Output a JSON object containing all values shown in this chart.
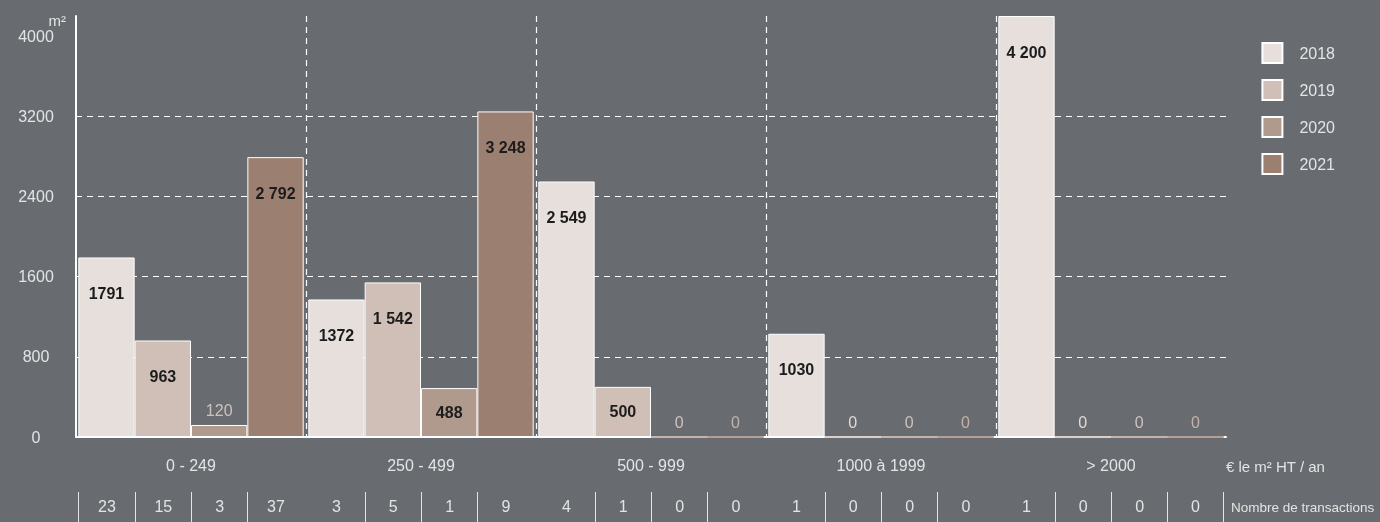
{
  "chart_data": {
    "type": "bar",
    "ylabel": "m²",
    "xlabel": "€ le m² HT / an",
    "categories": [
      "0 - 249",
      "250 - 499",
      "500 - 999",
      "1000 à 1999",
      "> 2000"
    ],
    "series": [
      {
        "name": "2018",
        "color": "#e6dfdc",
        "values": [
          1791,
          1372,
          2549,
          1030,
          4200
        ],
        "value_labels": [
          "1791",
          "1372",
          "2 549",
          "1030",
          "4 200"
        ]
      },
      {
        "name": "2019",
        "color": "#cfbfb7",
        "values": [
          963,
          1542,
          500,
          0,
          0
        ],
        "value_labels": [
          "963",
          "1 542",
          "500",
          "0",
          "0"
        ]
      },
      {
        "name": "2020",
        "color": "#b09a8e",
        "values": [
          120,
          488,
          0,
          0,
          0
        ],
        "value_labels": [
          "120",
          "488",
          "0",
          "0",
          "0"
        ]
      },
      {
        "name": "2021",
        "color": "#9b7f71",
        "values": [
          2792,
          3248,
          0,
          0,
          0
        ],
        "value_labels": [
          "2 792",
          "3 248",
          "0",
          "0",
          "0"
        ]
      }
    ],
    "ylim": [
      0,
      4200
    ],
    "yticks": [
      0,
      800,
      1600,
      2400,
      3200,
      4000
    ],
    "grid": true,
    "legend": "top right",
    "annotations": [
      "23",
      "15",
      "3",
      "37",
      "3",
      "5",
      "1",
      "9",
      "4",
      "1",
      "0",
      "0",
      "1",
      "0",
      "0",
      "0",
      "1",
      "0",
      "0",
      "0",
      "Nombre de transactions"
    ]
  }
}
